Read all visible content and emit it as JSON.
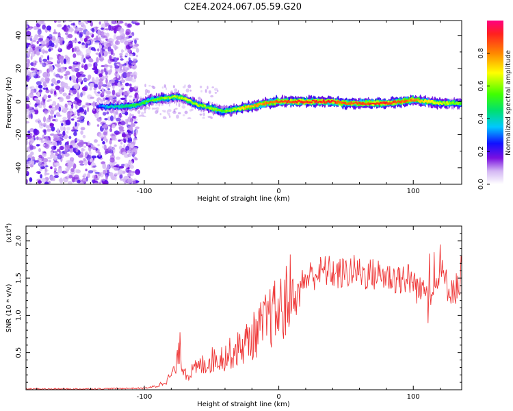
{
  "page_title": "C2E4.2024.067.05.59.G20",
  "colors": {
    "snr_line": "#ee3333",
    "axis": "#000000",
    "spectrogram_background": "#ffffff"
  },
  "chart_data": [
    {
      "type": "heatmap",
      "name": "spectrogram",
      "title": "C2E4.2024.067.05.59.G20",
      "xlabel": "Height of straight line (km)",
      "ylabel": "Frequency (Hz)",
      "xlim": [
        -188,
        136
      ],
      "ylim": [
        -50,
        49
      ],
      "xticks": [
        -100,
        0,
        100
      ],
      "xtick_labels": [
        "-100",
        "0",
        "100"
      ],
      "yticks": [
        -40,
        -20,
        0,
        20,
        40
      ],
      "ytick_labels": [
        "-40",
        "-20",
        "0",
        "20",
        "40"
      ],
      "colorbar": {
        "label": "Normalized spectral amplitude",
        "range": [
          0.0,
          1.0
        ],
        "ticks": [
          0.0,
          0.2,
          0.4,
          0.6,
          0.8
        ],
        "tick_labels": [
          "0.0",
          "0.2",
          "0.4",
          "0.6",
          "0.8"
        ]
      },
      "noise_region": {
        "x_from": -188,
        "x_to": -105,
        "amplitude": 0.15
      },
      "signal_trace": {
        "x": [
          -135,
          -125,
          -115,
          -105,
          -95,
          -85,
          -75,
          -68,
          -60,
          -50,
          -42,
          -35,
          -28,
          -20,
          -10,
          0,
          10,
          20,
          30,
          40,
          50,
          60,
          70,
          80,
          90,
          100,
          110,
          120,
          130,
          136
        ],
        "freq": [
          -3,
          -3,
          -3,
          -2,
          1,
          2,
          3,
          1,
          -2,
          -4,
          -6,
          -5,
          -4,
          -3,
          -1,
          0,
          0,
          0,
          0,
          0,
          -1,
          -1,
          -1,
          -1,
          0,
          1,
          0,
          -1,
          -1,
          -1
        ],
        "amplitude": [
          0.25,
          0.4,
          0.45,
          0.5,
          0.55,
          0.6,
          0.6,
          0.65,
          0.6,
          0.6,
          0.55,
          0.6,
          0.7,
          0.75,
          0.8,
          0.85,
          0.9,
          0.9,
          0.9,
          0.9,
          0.85,
          0.85,
          0.9,
          0.9,
          0.85,
          0.8,
          0.7,
          0.65,
          0.6,
          0.55
        ]
      }
    },
    {
      "type": "line",
      "name": "snr",
      "xlabel": "Height of straight line (km)",
      "ylabel": "SNR (10 * v/v)",
      "y_multiplier_label": "(x10",
      "y_multiplier_exponent": "4",
      "y_multiplier_close": ")",
      "xlim": [
        -188,
        136
      ],
      "ylim": [
        0,
        2.2
      ],
      "xticks": [
        -100,
        0,
        100
      ],
      "xtick_labels": [
        "-100",
        "0",
        "100"
      ],
      "yticks": [
        0.5,
        1.0,
        1.5,
        2.0
      ],
      "ytick_labels": [
        "0.5",
        "1.0",
        "1.5",
        "2.0"
      ],
      "series": [
        {
          "name": "SNR",
          "x": [
            -188,
            -150,
            -110,
            -100,
            -90,
            -82,
            -76,
            -74,
            -72,
            -68,
            -60,
            -50,
            -40,
            -30,
            -20,
            -10,
            -5,
            0,
            5,
            10,
            13,
            18,
            25,
            35,
            45,
            55,
            65,
            75,
            85,
            95,
            100,
            105,
            110,
            115,
            120,
            125,
            130,
            136
          ],
          "y": [
            0.01,
            0.01,
            0.02,
            0.02,
            0.05,
            0.15,
            0.3,
            0.6,
            0.35,
            0.2,
            0.3,
            0.4,
            0.45,
            0.55,
            0.7,
            0.9,
            1.0,
            1.05,
            1.15,
            1.35,
            1.2,
            1.45,
            1.55,
            1.6,
            1.55,
            1.6,
            1.55,
            1.55,
            1.5,
            1.5,
            1.45,
            1.3,
            1.5,
            1.25,
            1.6,
            1.4,
            1.35,
            1.4
          ]
        }
      ]
    }
  ]
}
